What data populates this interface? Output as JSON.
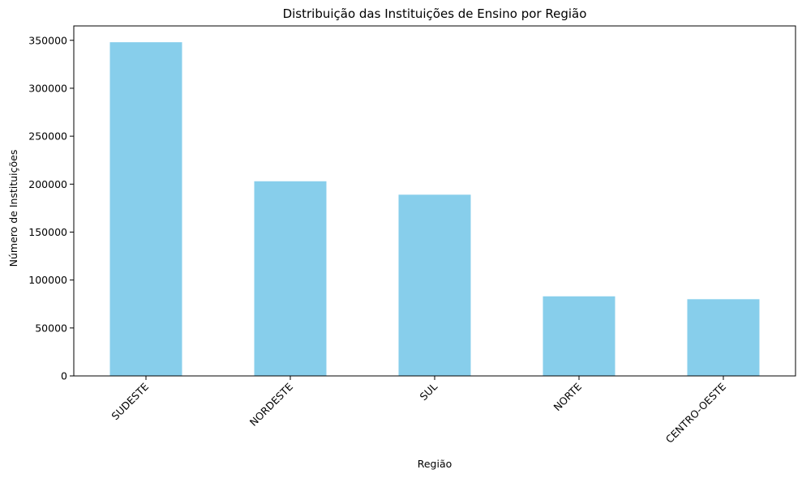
{
  "chart_data": {
    "type": "bar",
    "title": "Distribuição das Instituições de Ensino por Região",
    "xlabel": "Região",
    "ylabel": "Número de Instituições",
    "categories": [
      "SUDESTE",
      "NORDESTE",
      "SUL",
      "NORTE",
      "CENTRO-OESTE"
    ],
    "values": [
      348000,
      203000,
      189000,
      83000,
      80000
    ],
    "ylim": [
      0,
      365000
    ],
    "yticks": [
      0,
      50000,
      100000,
      150000,
      200000,
      250000,
      300000,
      350000
    ],
    "ytick_labels": [
      "0",
      "50000",
      "100000",
      "150000",
      "200000",
      "250000",
      "300000",
      "350000"
    ],
    "bar_color": "#87ceeb",
    "grid": false,
    "legend": "none"
  }
}
